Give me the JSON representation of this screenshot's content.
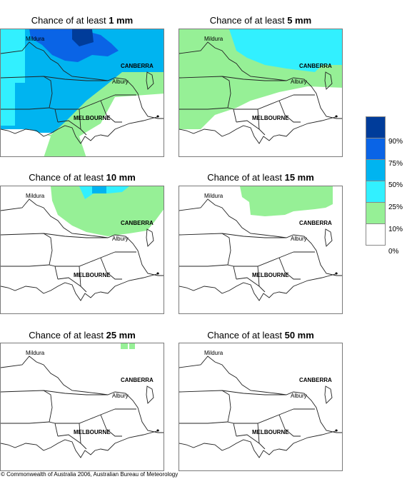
{
  "title_prefix": "Chance of at least",
  "panels": [
    {
      "amount": "1 mm"
    },
    {
      "amount": "5 mm"
    },
    {
      "amount": "10 mm"
    },
    {
      "amount": "15 mm"
    },
    {
      "amount": "25 mm"
    },
    {
      "amount": "50 mm"
    }
  ],
  "place_labels": {
    "mildura": "Mildura",
    "canberra": "CANBERRA",
    "albury": "Albury",
    "melbourne": "MELBOURNE"
  },
  "legend": {
    "labels": [
      "90%",
      "75%",
      "50%",
      "25%",
      "10%",
      "0%"
    ],
    "colors": [
      "#003c9a",
      "#0a64e6",
      "#00b4f0",
      "#32f0ff",
      "#96f096",
      "#ffffff"
    ]
  },
  "copyright": "© Commonwealth of Australia 2006, Australian Bureau of Meteorology"
}
